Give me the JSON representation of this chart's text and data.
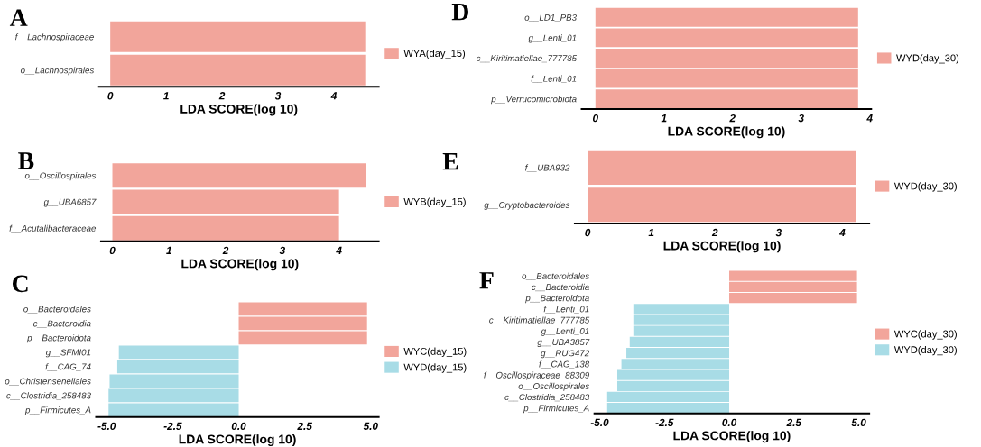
{
  "chart_data": [
    {
      "type": "bar",
      "orientation": "horizontal",
      "title": "A",
      "xlabel": "LDA SCORE(log 10)",
      "categories": [
        "f__Lachnospiraceae",
        "o__Lachnospirales"
      ],
      "series": [
        {
          "name": "WYA(day_15)",
          "color": "#f2a59b",
          "values": [
            4.56,
            4.56
          ]
        }
      ],
      "xlim": [
        -0.2,
        4.8
      ],
      "xticks": [
        0,
        1,
        2,
        3,
        4
      ],
      "legend": "right",
      "grid": false
    },
    {
      "type": "bar",
      "orientation": "horizontal",
      "title": "B",
      "xlabel": "LDA SCORE(log 10)",
      "categories": [
        "o__Oscillospirales",
        "g__UBA6857",
        "f__Acutalibacteraceae"
      ],
      "series": [
        {
          "name": "WYB(day_15)",
          "color": "#f2a59b",
          "values": [
            4.48,
            4.0,
            4.0
          ]
        }
      ],
      "xlim": [
        -0.2,
        4.7
      ],
      "xticks": [
        0,
        1,
        2,
        3,
        4
      ],
      "legend": "right",
      "grid": false
    },
    {
      "type": "bar",
      "orientation": "horizontal",
      "title": "C",
      "xlabel": "LDA SCORE(log 10)",
      "categories": [
        "o__Bacteroidales",
        "c__Bacteroidia",
        "p__Bacteroidota",
        "g__SFMI01",
        "f__CAG_74",
        "o__Christensenellales",
        "c__Clostridia_258483",
        "p__Firmicutes_A"
      ],
      "series": [
        {
          "name": "WYC(day_15)",
          "color": "#f2a59b",
          "values": [
            4.86,
            4.86,
            4.86,
            null,
            null,
            null,
            null,
            null
          ]
        },
        {
          "name": "WYD(day_15)",
          "color": "#a8dce6",
          "values": [
            null,
            null,
            null,
            -4.54,
            -4.6,
            -4.89,
            -4.93,
            -4.93
          ]
        }
      ],
      "xlim": [
        -5.4,
        5.3
      ],
      "xticks": [
        {
          "value": -5,
          "label": "-5.0"
        },
        {
          "value": -2.5,
          "label": "-2.5"
        },
        {
          "value": 0,
          "label": "0.0"
        },
        {
          "value": 2.5,
          "label": "2.5"
        },
        {
          "value": 5,
          "label": "5.0"
        }
      ],
      "legend": "right",
      "grid": false
    },
    {
      "type": "bar",
      "orientation": "horizontal",
      "title": "D",
      "xlabel": "LDA SCORE(log 10)",
      "categories": [
        "o__LD1_PB3",
        "g__Lenti_01",
        "c__Kiritimatiellae_777785",
        "f__Lenti_01",
        "p__Verrucomicrobiota"
      ],
      "series": [
        {
          "name": "WYD(day_30)",
          "color": "#f2a59b",
          "values": [
            3.83,
            3.83,
            3.83,
            3.83,
            3.83
          ]
        }
      ],
      "xlim": [
        -0.2,
        4.02
      ],
      "xticks": [
        0,
        1,
        2,
        3,
        4
      ],
      "legend": "right",
      "grid": false
    },
    {
      "type": "bar",
      "orientation": "horizontal",
      "title": "E",
      "xlabel": "LDA SCORE(log 10)",
      "categories": [
        "f__UBA932",
        "g__Cryptobacteroides"
      ],
      "series": [
        {
          "name": "WYD(day_30)",
          "color": "#f2a59b",
          "values": [
            4.21,
            4.21
          ]
        }
      ],
      "xlim": [
        -0.2,
        4.42
      ],
      "xticks": [
        0,
        1,
        2,
        3,
        4
      ],
      "legend": "right",
      "grid": false
    },
    {
      "type": "bar",
      "orientation": "horizontal",
      "title": "F",
      "xlabel": "LDA SCORE(log 10)",
      "categories": [
        "o__Bacteroidales",
        "c__Bacteroidia",
        "p__Bacteroidota",
        "f__Lenti_01",
        "c__Kiritimatiellae_777785",
        "g__Lenti_01",
        "g__UBA3857",
        "g__RUG472",
        "f__CAG_138",
        "f__Oscillospiraceae_88309",
        "o__Oscillospirales",
        "c__Clostridia_258483",
        "p__Firmicutes_A"
      ],
      "series": [
        {
          "name": "WYC(day_30)",
          "color": "#f2a59b",
          "values": [
            4.93,
            4.93,
            4.93,
            null,
            null,
            null,
            null,
            null,
            null,
            null,
            null,
            null,
            null
          ]
        },
        {
          "name": "WYD(day_30)",
          "color": "#a8dce6",
          "values": [
            null,
            null,
            null,
            -3.7,
            -3.7,
            -3.7,
            -3.84,
            -3.97,
            -4.16,
            -4.32,
            -4.32,
            -4.71,
            -4.71
          ]
        }
      ],
      "xlim": [
        -5.2,
        5.4
      ],
      "xticks": [
        {
          "value": -5,
          "label": "-5.0"
        },
        {
          "value": -2.5,
          "label": "-2.5"
        },
        {
          "value": 0,
          "label": "0.0"
        },
        {
          "value": 2.5,
          "label": "2.5"
        },
        {
          "value": 5,
          "label": "5.0"
        }
      ],
      "legend": "right",
      "grid": false
    }
  ]
}
